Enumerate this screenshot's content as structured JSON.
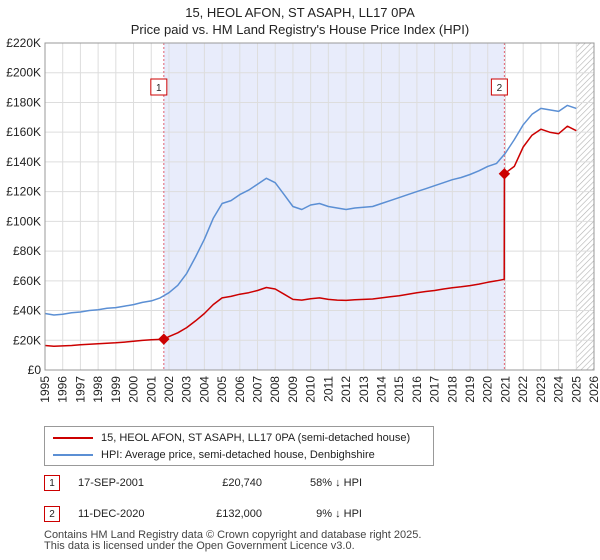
{
  "title_line1": "15, HEOL AFON, ST ASAPH, LL17 0PA",
  "title_line2": "Price paid vs. HM Land Registry's House Price Index (HPI)",
  "legend": {
    "property_label": "15, HEOL AFON, ST ASAPH, LL17 0PA (semi-detached house)",
    "hpi_label": "HPI: Average price, semi-detached house, Denbighshire"
  },
  "colors": {
    "property": "#cc0000",
    "hpi": "#5b8fd4",
    "shade": "#e8ecfb",
    "hatch": "#b0b0b0",
    "grid": "#dddddd",
    "vline": "#e06070"
  },
  "sales": [
    {
      "badge": "1",
      "date": "17-SEP-2001",
      "price": "£20,740",
      "hpi_diff": "58% ↓ HPI"
    },
    {
      "badge": "2",
      "date": "11-DEC-2020",
      "price": "£132,000",
      "hpi_diff": "9% ↓ HPI"
    }
  ],
  "footer": {
    "line1": "Contains HM Land Registry data © Crown copyright and database right 2025.",
    "line2": "This data is licensed under the Open Government Licence v3.0."
  },
  "chart_data": {
    "type": "line",
    "title": "15, HEOL AFON, ST ASAPH, LL17 0PA — Price paid vs. HM Land Registry's House Price Index (HPI)",
    "xlabel": "",
    "ylabel": "",
    "xlim": [
      1995,
      2026
    ],
    "ylim": [
      0,
      220000
    ],
    "x_ticks": [
      1995,
      1996,
      1997,
      1998,
      1999,
      2000,
      2001,
      2002,
      2003,
      2004,
      2005,
      2006,
      2007,
      2008,
      2009,
      2010,
      2011,
      2012,
      2013,
      2014,
      2015,
      2016,
      2017,
      2018,
      2019,
      2020,
      2021,
      2022,
      2023,
      2024,
      2025,
      2026
    ],
    "x_tick_labels": [
      "1995",
      "1996",
      "1997",
      "1998",
      "1999",
      "2000",
      "2001",
      "2002",
      "2003",
      "2004",
      "2005",
      "2006",
      "2007",
      "2008",
      "2009",
      "2010",
      "2011",
      "2012",
      "2013",
      "2014",
      "2015",
      "2016",
      "2017",
      "2018",
      "2019",
      "2020",
      "2021",
      "2022",
      "2023",
      "2024",
      "2025",
      "2026"
    ],
    "y_ticks": [
      0,
      20000,
      40000,
      60000,
      80000,
      100000,
      120000,
      140000,
      160000,
      180000,
      200000,
      220000
    ],
    "y_tick_labels": [
      "£0",
      "£20K",
      "£40K",
      "£60K",
      "£80K",
      "£100K",
      "£120K",
      "£140K",
      "£160K",
      "£180K",
      "£200K",
      "£220K"
    ],
    "grid": true,
    "shaded_range": [
      2001.71,
      2020.94
    ],
    "hatched_from": 2025.0,
    "annotations": [
      {
        "label": "1",
        "x": 2001.71,
        "y": 20740
      },
      {
        "label": "2",
        "x": 2020.94,
        "y": 132000
      }
    ],
    "series": [
      {
        "name": "HPI: Average price, semi-detached house, Denbighshire",
        "points": [
          [
            1995.0,
            38000
          ],
          [
            1995.5,
            37000
          ],
          [
            1996.0,
            37500
          ],
          [
            1996.5,
            38500
          ],
          [
            1997.0,
            39000
          ],
          [
            1997.5,
            40000
          ],
          [
            1998.0,
            40500
          ],
          [
            1998.5,
            41500
          ],
          [
            1999.0,
            42000
          ],
          [
            1999.5,
            43000
          ],
          [
            2000.0,
            44000
          ],
          [
            2000.5,
            45500
          ],
          [
            2001.0,
            46500
          ],
          [
            2001.5,
            48500
          ],
          [
            2002.0,
            52000
          ],
          [
            2002.5,
            57000
          ],
          [
            2003.0,
            65000
          ],
          [
            2003.5,
            76000
          ],
          [
            2004.0,
            88000
          ],
          [
            2004.5,
            102000
          ],
          [
            2005.0,
            112000
          ],
          [
            2005.5,
            114000
          ],
          [
            2006.0,
            118000
          ],
          [
            2006.5,
            121000
          ],
          [
            2007.0,
            125000
          ],
          [
            2007.5,
            129000
          ],
          [
            2008.0,
            126000
          ],
          [
            2008.5,
            118000
          ],
          [
            2009.0,
            110000
          ],
          [
            2009.5,
            108000
          ],
          [
            2010.0,
            111000
          ],
          [
            2010.5,
            112000
          ],
          [
            2011.0,
            110000
          ],
          [
            2011.5,
            109000
          ],
          [
            2012.0,
            108000
          ],
          [
            2012.5,
            109000
          ],
          [
            2013.0,
            109500
          ],
          [
            2013.5,
            110000
          ],
          [
            2014.0,
            112000
          ],
          [
            2014.5,
            114000
          ],
          [
            2015.0,
            116000
          ],
          [
            2015.5,
            118000
          ],
          [
            2016.0,
            120000
          ],
          [
            2016.5,
            122000
          ],
          [
            2017.0,
            124000
          ],
          [
            2017.5,
            126000
          ],
          [
            2018.0,
            128000
          ],
          [
            2018.5,
            129500
          ],
          [
            2019.0,
            131500
          ],
          [
            2019.5,
            134000
          ],
          [
            2020.0,
            137000
          ],
          [
            2020.5,
            139000
          ],
          [
            2021.0,
            146000
          ],
          [
            2021.5,
            155000
          ],
          [
            2022.0,
            165000
          ],
          [
            2022.5,
            172000
          ],
          [
            2023.0,
            176000
          ],
          [
            2023.5,
            175000
          ],
          [
            2024.0,
            174000
          ],
          [
            2024.5,
            178000
          ],
          [
            2025.0,
            176000
          ]
        ]
      },
      {
        "name": "15, HEOL AFON, ST ASAPH, LL17 0PA (semi-detached house)",
        "points": [
          [
            1995.0,
            16500
          ],
          [
            1995.5,
            16000
          ],
          [
            1996.0,
            16200
          ],
          [
            1996.5,
            16500
          ],
          [
            1997.0,
            17000
          ],
          [
            1997.5,
            17300
          ],
          [
            1998.0,
            17600
          ],
          [
            1998.5,
            18000
          ],
          [
            1999.0,
            18300
          ],
          [
            1999.5,
            18800
          ],
          [
            2000.0,
            19300
          ],
          [
            2000.5,
            19900
          ],
          [
            2001.0,
            20300
          ],
          [
            2001.71,
            20740
          ],
          [
            2002.0,
            22500
          ],
          [
            2002.5,
            25000
          ],
          [
            2003.0,
            28500
          ],
          [
            2003.5,
            33000
          ],
          [
            2004.0,
            38000
          ],
          [
            2004.5,
            44000
          ],
          [
            2005.0,
            48500
          ],
          [
            2005.5,
            49500
          ],
          [
            2006.0,
            51000
          ],
          [
            2006.5,
            52000
          ],
          [
            2007.0,
            53500
          ],
          [
            2007.5,
            55500
          ],
          [
            2008.0,
            54500
          ],
          [
            2008.5,
            51000
          ],
          [
            2009.0,
            47500
          ],
          [
            2009.5,
            47000
          ],
          [
            2010.0,
            48000
          ],
          [
            2010.5,
            48500
          ],
          [
            2011.0,
            47500
          ],
          [
            2011.5,
            47000
          ],
          [
            2012.0,
            46800
          ],
          [
            2012.5,
            47200
          ],
          [
            2013.0,
            47500
          ],
          [
            2013.5,
            47800
          ],
          [
            2014.0,
            48500
          ],
          [
            2014.5,
            49300
          ],
          [
            2015.0,
            50000
          ],
          [
            2015.5,
            51000
          ],
          [
            2016.0,
            52000
          ],
          [
            2016.5,
            52800
          ],
          [
            2017.0,
            53500
          ],
          [
            2017.5,
            54500
          ],
          [
            2018.0,
            55300
          ],
          [
            2018.5,
            56000
          ],
          [
            2019.0,
            56800
          ],
          [
            2019.5,
            57800
          ],
          [
            2020.0,
            59000
          ],
          [
            2020.5,
            60000
          ],
          [
            2020.93,
            61000
          ],
          [
            2020.94,
            132000
          ],
          [
            2021.5,
            137000
          ],
          [
            2022.0,
            150000
          ],
          [
            2022.5,
            158000
          ],
          [
            2023.0,
            162000
          ],
          [
            2023.5,
            160000
          ],
          [
            2024.0,
            159000
          ],
          [
            2024.5,
            164000
          ],
          [
            2025.0,
            161000
          ]
        ]
      }
    ]
  }
}
